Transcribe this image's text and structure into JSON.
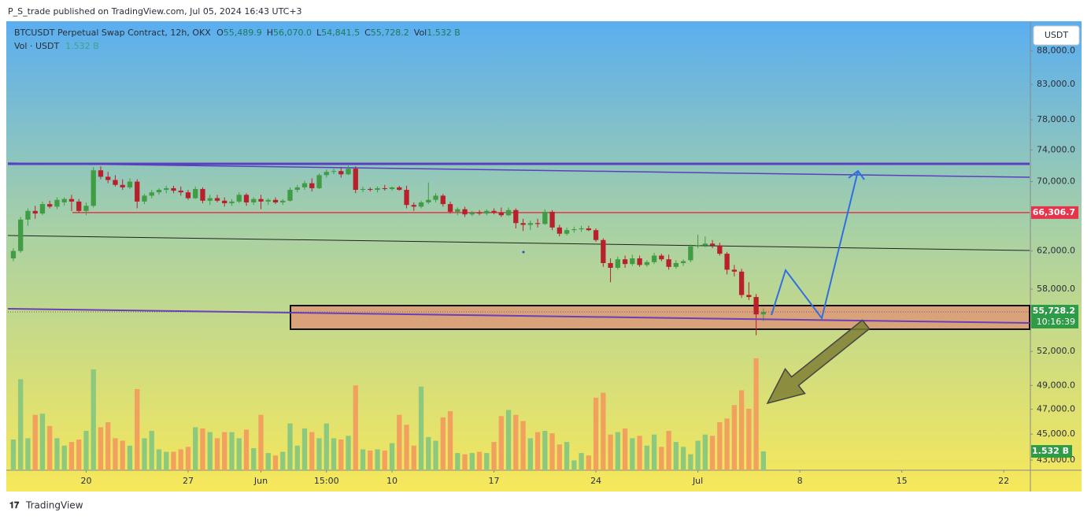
{
  "header": "P_S_trade published on TradingView.com, Jul 05, 2024 16:43 UTC+3",
  "footer": "TradingView",
  "chart_data": {
    "type": "candlestick",
    "legend": {
      "symbol": "BTCUSDT Perpetual Swap Contract, 12h, OKX",
      "fields": [
        {
          "key": "O",
          "value": "55,489.9"
        },
        {
          "key": "H",
          "value": "56,070.0"
        },
        {
          "key": "L",
          "value": "54,841.5"
        },
        {
          "key": "C",
          "value": "55,728.2"
        },
        {
          "key": "Vol",
          "value": "1.532 B"
        }
      ],
      "volume_title": "Vol · USDT",
      "volume_value": "1.532 B"
    },
    "currency_button": "USDT",
    "log_scale": true,
    "grid": false,
    "up_color": "#3f9d44",
    "down_color": "#b8202c",
    "volume_up_color": "#8cc97f",
    "volume_down_color": "#f2a05e",
    "ylim": [
      42240,
      92680
    ],
    "yticks": [
      {
        "value": 43000,
        "label": "43,000.0"
      },
      {
        "value": 45000,
        "label": "45,000.0"
      },
      {
        "value": 47000,
        "label": "47,000.0"
      },
      {
        "value": 49000,
        "label": "49,000.0"
      },
      {
        "value": 52000,
        "label": "52,000.0"
      },
      {
        "value": 58000,
        "label": "58,000.0"
      },
      {
        "value": 62000,
        "label": "62,000.0"
      },
      {
        "value": 70000,
        "label": "70,000.0"
      },
      {
        "value": 74000,
        "label": "74,000.0"
      },
      {
        "value": 78000,
        "label": "78,000.0"
      },
      {
        "value": 83000,
        "label": "83,000.0"
      },
      {
        "value": 88000,
        "label": "88,000.0"
      }
    ],
    "xlim": [
      -0.75,
      139.55
    ],
    "xticks": [
      {
        "value": 10,
        "label": "20"
      },
      {
        "value": 24,
        "label": "27"
      },
      {
        "value": 34,
        "label": "Jun"
      },
      {
        "value": 43,
        "label": "15:00"
      },
      {
        "value": 52,
        "label": "10"
      },
      {
        "value": 66,
        "label": "17"
      },
      {
        "value": 80,
        "label": "24"
      },
      {
        "value": 94,
        "label": "Jul"
      },
      {
        "value": 108,
        "label": "8"
      },
      {
        "value": 122,
        "label": "15"
      },
      {
        "value": 136,
        "label": "22"
      }
    ],
    "volume_lim": [
      0,
      36.5
    ],
    "candles": [
      [
        61200,
        62300,
        60900,
        62000
      ],
      [
        62000,
        65800,
        61800,
        65500
      ],
      [
        65500,
        66800,
        64800,
        66500
      ],
      [
        66500,
        67100,
        65600,
        66200
      ],
      [
        66200,
        67600,
        66000,
        67300
      ],
      [
        67300,
        67700,
        66800,
        67000
      ],
      [
        67000,
        68100,
        66700,
        67800
      ],
      [
        67500,
        68100,
        67100,
        67900
      ],
      [
        67900,
        68400,
        66500,
        67600
      ],
      [
        67600,
        67900,
        66300,
        66500
      ],
      [
        66500,
        67500,
        66000,
        67100
      ],
      [
        67100,
        71800,
        66900,
        71400
      ],
      [
        71400,
        71900,
        70300,
        70600
      ],
      [
        70600,
        71200,
        69800,
        70200
      ],
      [
        70200,
        70800,
        69400,
        69600
      ],
      [
        69600,
        70300,
        69000,
        69300
      ],
      [
        69300,
        70400,
        69100,
        70000
      ],
      [
        70000,
        70300,
        66800,
        67600
      ],
      [
        67600,
        68500,
        67300,
        68300
      ],
      [
        68300,
        69000,
        68000,
        68700
      ],
      [
        68700,
        69200,
        68400,
        69000
      ],
      [
        69000,
        69500,
        68600,
        69200
      ],
      [
        69200,
        69500,
        68600,
        68900
      ],
      [
        68900,
        69400,
        68300,
        68700
      ],
      [
        68700,
        69000,
        67800,
        68000
      ],
      [
        68000,
        69400,
        67900,
        69100
      ],
      [
        69100,
        69300,
        67400,
        67700
      ],
      [
        67700,
        68400,
        67200,
        68000
      ],
      [
        68000,
        68400,
        67500,
        67700
      ],
      [
        67700,
        68100,
        67000,
        67400
      ],
      [
        67400,
        67900,
        67100,
        67600
      ],
      [
        67600,
        68700,
        67400,
        68400
      ],
      [
        68400,
        68600,
        67100,
        67500
      ],
      [
        67500,
        68100,
        67200,
        67900
      ],
      [
        67900,
        68400,
        66700,
        67600
      ],
      [
        67600,
        68000,
        67200,
        67800
      ],
      [
        67800,
        68100,
        67300,
        67500
      ],
      [
        67500,
        67900,
        67200,
        67700
      ],
      [
        67700,
        69300,
        67600,
        69000
      ],
      [
        69000,
        69600,
        68700,
        69300
      ],
      [
        69300,
        70100,
        69000,
        69800
      ],
      [
        69800,
        70400,
        68800,
        69200
      ],
      [
        69200,
        71000,
        69100,
        70800
      ],
      [
        70800,
        71500,
        70500,
        71200
      ],
      [
        71200,
        71600,
        70900,
        71300
      ],
      [
        71300,
        71800,
        70500,
        70900
      ],
      [
        70900,
        72000,
        70800,
        71600
      ],
      [
        71600,
        71900,
        68600,
        69000
      ],
      [
        69000,
        69400,
        68700,
        69100
      ],
      [
        69100,
        69300,
        68800,
        69000
      ],
      [
        69000,
        69400,
        68700,
        69200
      ],
      [
        69200,
        69600,
        68900,
        69100
      ],
      [
        69100,
        69400,
        68900,
        69300
      ],
      [
        69300,
        69500,
        68900,
        69000
      ],
      [
        69000,
        69500,
        66800,
        67200
      ],
      [
        67200,
        67500,
        66500,
        67000
      ],
      [
        67000,
        67700,
        66800,
        67500
      ],
      [
        67500,
        69900,
        67300,
        67800
      ],
      [
        67800,
        68600,
        67500,
        68300
      ],
      [
        68300,
        68500,
        67000,
        67300
      ],
      [
        67300,
        67600,
        66200,
        66400
      ],
      [
        66400,
        66900,
        66000,
        66700
      ],
      [
        66700,
        67000,
        65800,
        66100
      ],
      [
        66100,
        66500,
        65900,
        66300
      ],
      [
        66300,
        66600,
        66000,
        66200
      ],
      [
        66200,
        66700,
        66000,
        66500
      ],
      [
        66500,
        66800,
        66100,
        66300
      ],
      [
        66300,
        66900,
        65800,
        66000
      ],
      [
        66000,
        66900,
        65900,
        66600
      ],
      [
        66600,
        66800,
        64500,
        65100
      ],
      [
        65100,
        65600,
        64200,
        64900
      ],
      [
        64900,
        65400,
        64300,
        65100
      ],
      [
        65100,
        65600,
        64600,
        65000
      ],
      [
        65000,
        66700,
        64900,
        66400
      ],
      [
        66400,
        66600,
        64300,
        64600
      ],
      [
        64600,
        64900,
        63600,
        63900
      ],
      [
        63900,
        64600,
        63700,
        64300
      ],
      [
        64300,
        64700,
        64000,
        64400
      ],
      [
        64400,
        64800,
        64100,
        64500
      ],
      [
        64500,
        64800,
        64200,
        64300
      ],
      [
        64300,
        64500,
        63000,
        63200
      ],
      [
        63200,
        63400,
        60300,
        60700
      ],
      [
        60700,
        61200,
        58700,
        60200
      ],
      [
        60200,
        61400,
        60000,
        61100
      ],
      [
        61100,
        61500,
        60200,
        60600
      ],
      [
        60600,
        61600,
        60400,
        61200
      ],
      [
        61200,
        61500,
        60300,
        60500
      ],
      [
        60500,
        61000,
        60300,
        60800
      ],
      [
        60800,
        61800,
        60600,
        61500
      ],
      [
        61500,
        61700,
        60900,
        61100
      ],
      [
        61100,
        61600,
        60000,
        60300
      ],
      [
        60300,
        61000,
        60100,
        60700
      ],
      [
        60700,
        61100,
        60400,
        60900
      ],
      [
        61000,
        62700,
        60800,
        62500
      ],
      [
        62500,
        63800,
        62300,
        62600
      ],
      [
        62600,
        63600,
        62400,
        62800
      ],
      [
        62800,
        63200,
        62300,
        62600
      ],
      [
        62600,
        62900,
        61500,
        61700
      ],
      [
        61700,
        61900,
        59500,
        60000
      ],
      [
        60000,
        60500,
        59300,
        59800
      ],
      [
        59800,
        60100,
        57100,
        57400
      ],
      [
        57400,
        58700,
        56900,
        57200
      ],
      [
        57200,
        57500,
        53500,
        55489.9
      ],
      [
        55489.9,
        56070,
        54841.5,
        55728.2
      ]
    ],
    "volume": [
      2.5,
      7.4,
      2.6,
      4.5,
      4.6,
      3.6,
      2.6,
      2.0,
      2.3,
      2.5,
      3.2,
      8.2,
      3.5,
      3.9,
      2.6,
      2.4,
      2.0,
      6.6,
      2.6,
      3.2,
      1.7,
      1.5,
      1.5,
      1.7,
      1.9,
      3.5,
      3.4,
      3.1,
      2.6,
      3.1,
      3.1,
      2.6,
      3.3,
      1.8,
      4.5,
      1.4,
      1.2,
      1.5,
      3.8,
      2.0,
      3.4,
      3.1,
      2.6,
      3.8,
      2.6,
      2.5,
      2.8,
      6.9,
      1.7,
      1.6,
      1.7,
      1.6,
      2.2,
      4.5,
      3.7,
      2.0,
      6.8,
      2.7,
      2.4,
      4.3,
      4.8,
      1.4,
      1.3,
      1.4,
      1.5,
      1.4,
      2.3,
      4.4,
      4.9,
      4.5,
      4.0,
      2.6,
      3.1,
      3.2,
      3.0,
      2.1,
      2.3,
      0.8,
      1.4,
      1.2,
      5.9,
      6.3,
      2.9,
      3.1,
      3.4,
      2.6,
      2.8,
      2.0,
      2.9,
      1.9,
      3.2,
      2.3,
      1.9,
      1.3,
      2.4,
      2.9,
      2.8,
      3.9,
      4.2,
      5.3,
      6.5,
      5.0,
      9.1,
      1.532
    ],
    "volume_tag": "1.532 B",
    "price_line": {
      "value": 66306.7,
      "label": "66,306.7",
      "color": "#e8344a"
    },
    "last_price": {
      "value": 55728.2,
      "label": "55,728.2",
      "countdown": "10:16:39",
      "color": "#2e9b47"
    }
  }
}
